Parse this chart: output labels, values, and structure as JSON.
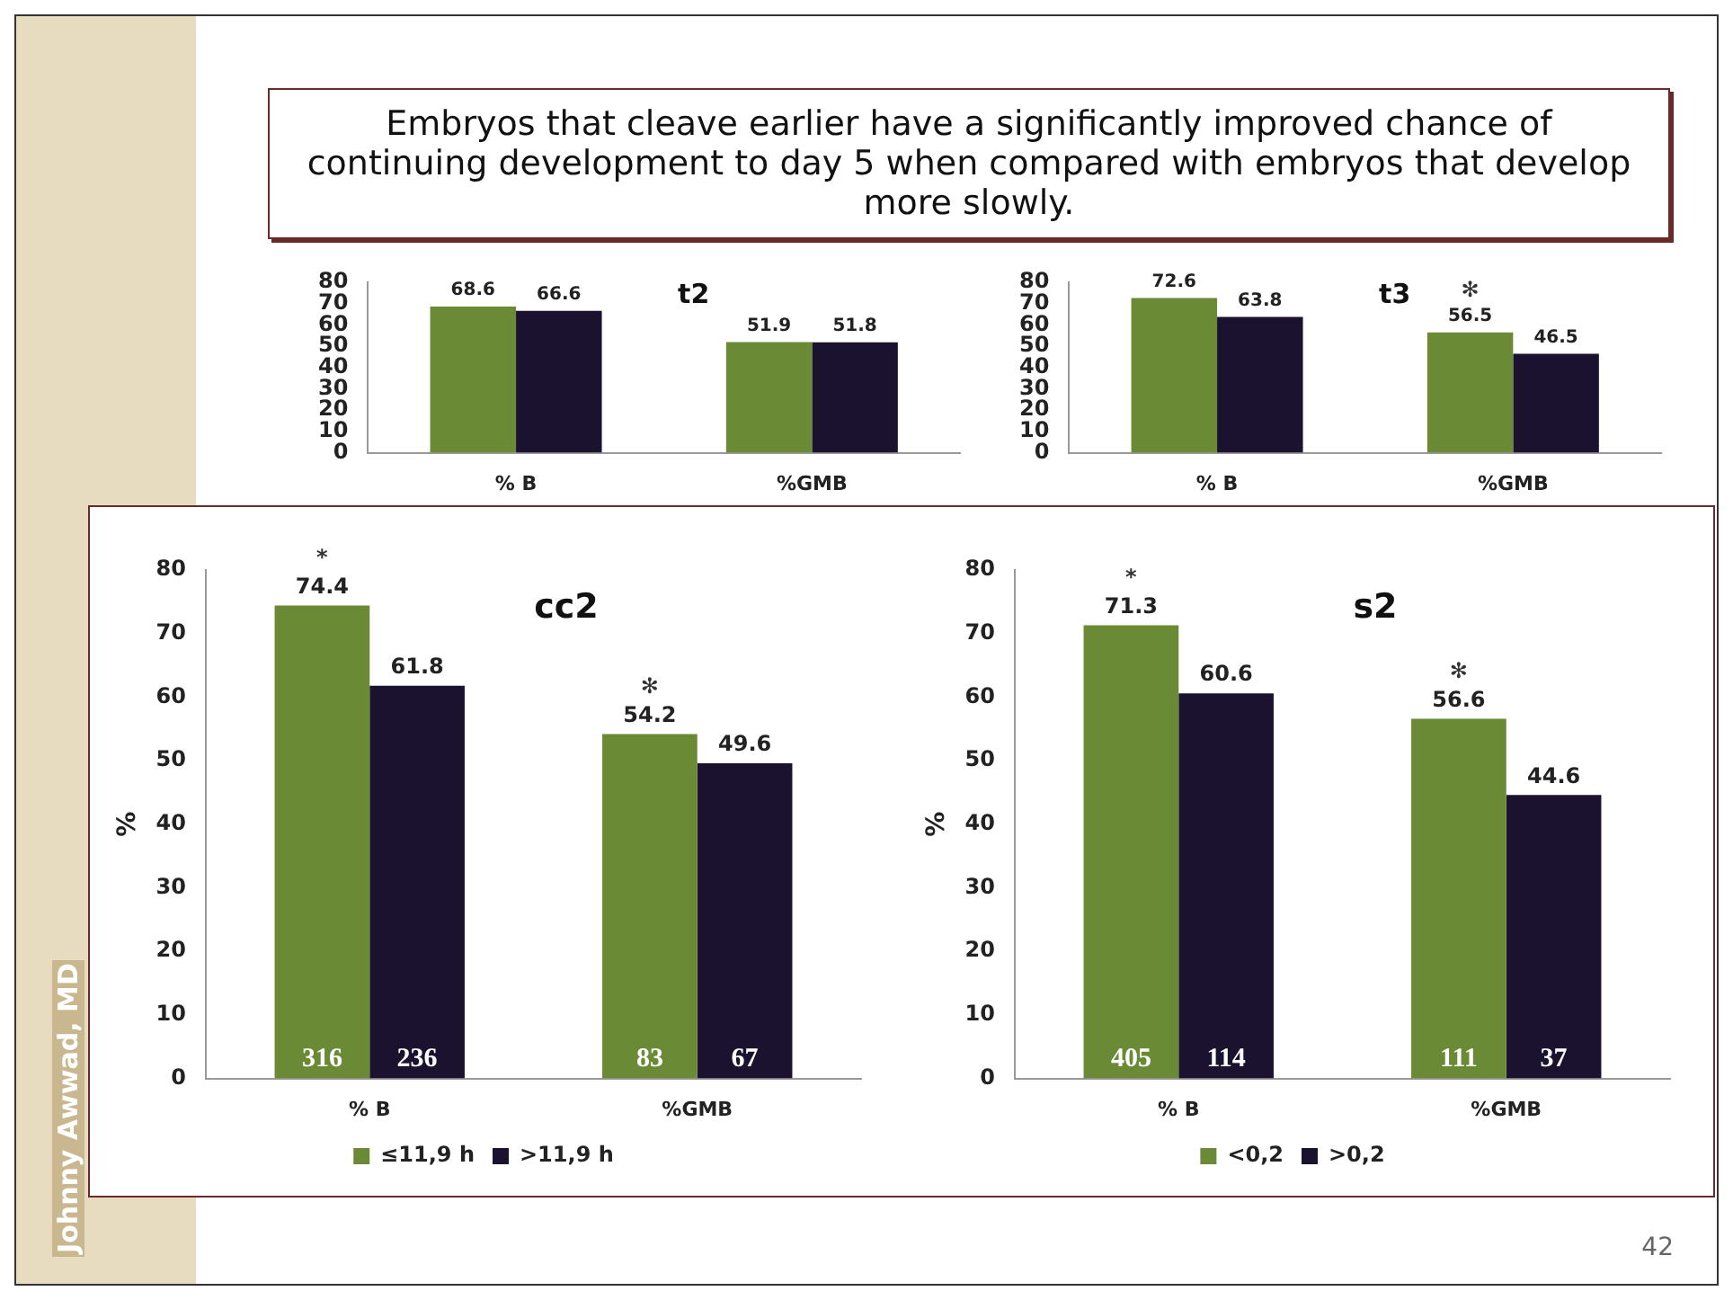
{
  "chart_data": [
    {
      "type": "other",
      "title": "Embryos that cleave earlier have a significantly improved chance of continuing development to day 5 when compared with embryos that develop more slowly.",
      "annotations": [
        "Johnny Awwad, MD",
        "42"
      ]
    },
    {
      "type": "bar",
      "title": "t2",
      "categories": [
        "% B",
        "%GMB"
      ],
      "series": [
        {
          "color": "#6a8a35",
          "values": [
            68.6,
            51.9
          ]
        },
        {
          "color": "#1b1230",
          "values": [
            66.6,
            51.8
          ]
        }
      ],
      "ylim": [
        0,
        80
      ],
      "yticks": [
        0,
        10,
        20,
        30,
        40,
        50,
        60,
        70,
        80
      ],
      "data_labels": true
    },
    {
      "type": "bar",
      "title": "t3",
      "categories": [
        "% B",
        "%GMB"
      ],
      "series": [
        {
          "color": "#6a8a35",
          "values": [
            72.6,
            56.5
          ]
        },
        {
          "color": "#1b1230",
          "values": [
            63.8,
            46.5
          ]
        }
      ],
      "ylim": [
        0,
        80
      ],
      "yticks": [
        0,
        10,
        20,
        30,
        40,
        50,
        60,
        70,
        80
      ],
      "data_labels": true,
      "annotations": [
        {
          "text": "✻",
          "x": "%GMB",
          "y": 56.5
        }
      ]
    },
    {
      "type": "bar",
      "title": "cc2",
      "ylabel": "%",
      "categories": [
        "% B",
        "%GMB"
      ],
      "series": [
        {
          "name": "≤11,9 h",
          "color": "#6a8a35",
          "values": [
            74.4,
            54.2
          ]
        },
        {
          "name": ">11,9 h",
          "color": "#1b1230",
          "values": [
            61.8,
            49.6
          ]
        }
      ],
      "ylim": [
        0,
        80
      ],
      "yticks": [
        0,
        10,
        20,
        30,
        40,
        50,
        60,
        70,
        80
      ],
      "data_labels": true,
      "legend": "bottom",
      "annotations": [
        {
          "text": "*",
          "x": "% B",
          "y": 74.4
        },
        {
          "text": "✻",
          "x": "%GMB",
          "y": 54.2
        },
        {
          "text": "316",
          "x": "% B",
          "y": 0
        },
        {
          "text": "236",
          "x": "% B",
          "y": 0
        },
        {
          "text": "83",
          "x": "%GMB",
          "y": 0
        },
        {
          "text": "67",
          "x": "%GMB",
          "y": 0
        }
      ]
    },
    {
      "type": "bar",
      "title": "s2",
      "ylabel": "%",
      "categories": [
        "% B",
        "%GMB"
      ],
      "series": [
        {
          "name": "<0,2",
          "color": "#6a8a35",
          "values": [
            71.3,
            56.6
          ]
        },
        {
          "name": ">0,2",
          "color": "#1b1230",
          "values": [
            60.6,
            44.6
          ]
        }
      ],
      "ylim": [
        0,
        80
      ],
      "yticks": [
        0,
        10,
        20,
        30,
        40,
        50,
        60,
        70,
        80
      ],
      "data_labels": true,
      "legend": "bottom",
      "annotations": [
        {
          "text": "*",
          "x": "% B",
          "y": 71.3
        },
        {
          "text": "✻",
          "x": "%GMB",
          "y": 56.6
        },
        {
          "text": "405",
          "x": "% B",
          "y": 0
        },
        {
          "text": "114",
          "x": "% B",
          "y": 0
        },
        {
          "text": "111",
          "x": "%GMB",
          "y": 0
        },
        {
          "text": "37",
          "x": "%GMB",
          "y": 0
        }
      ]
    }
  ]
}
